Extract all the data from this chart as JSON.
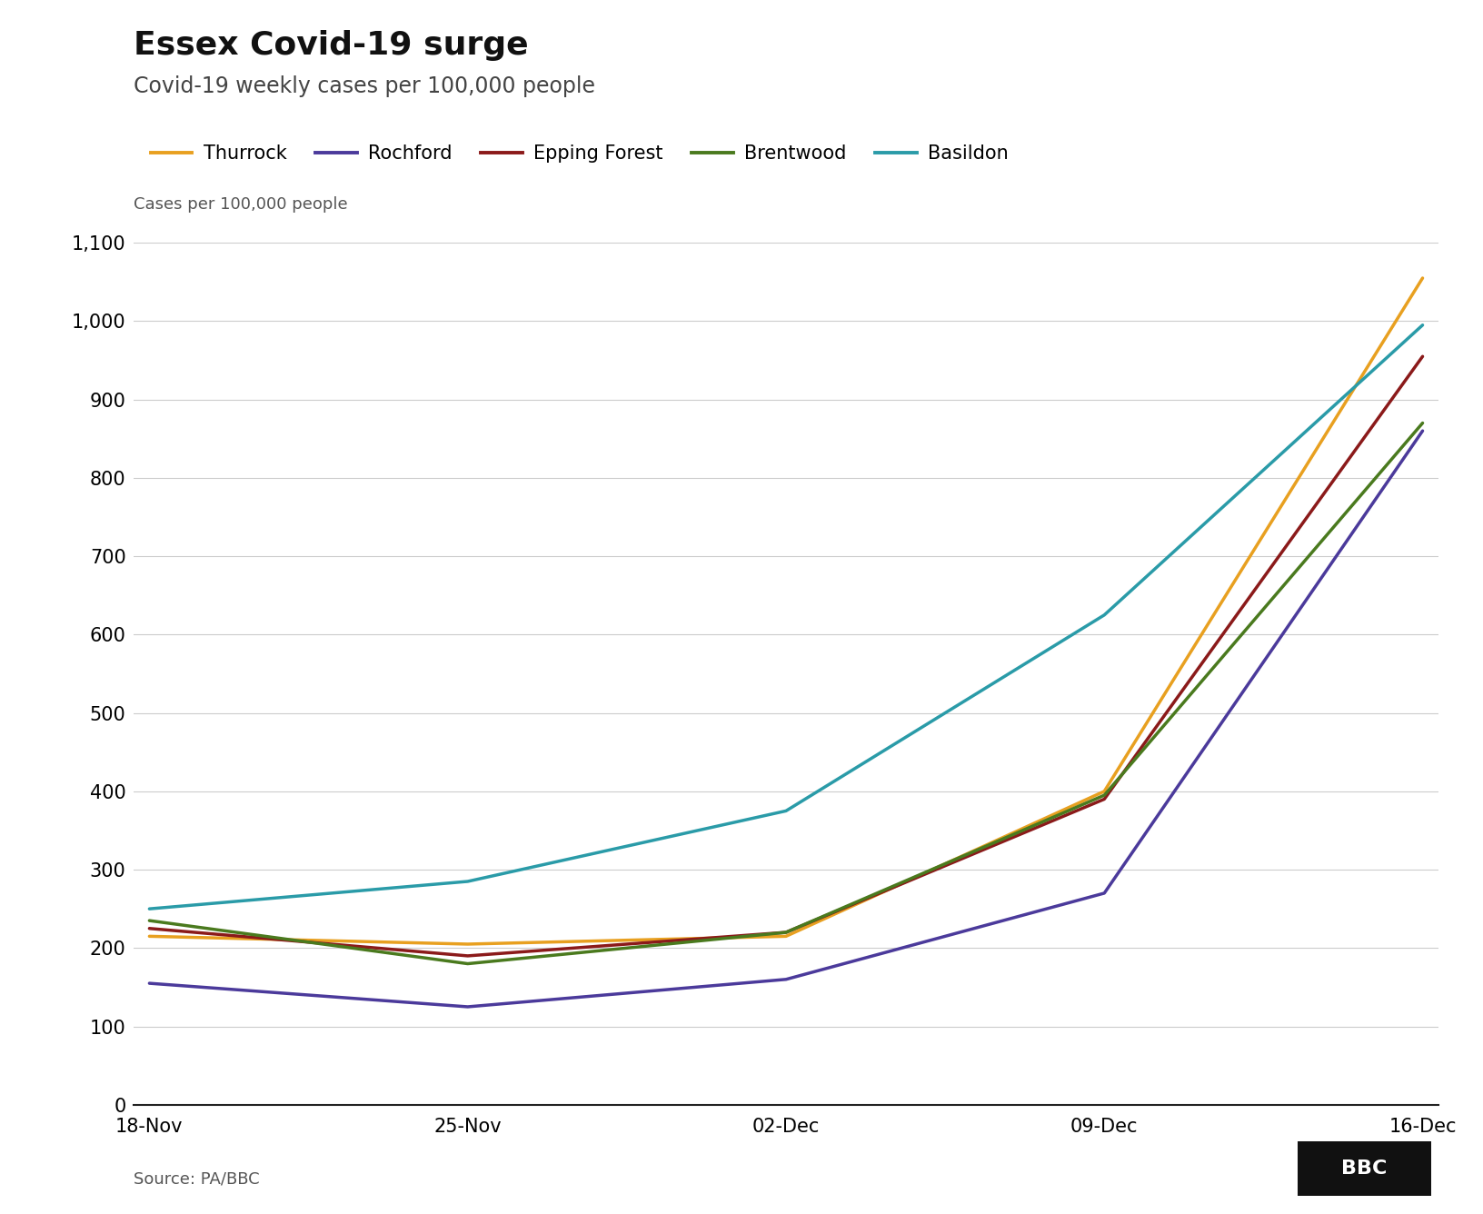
{
  "title": "Essex Covid-19 surge",
  "subtitle": "Covid-19 weekly cases per 100,000 people",
  "ylabel": "Cases per 100,000 people",
  "source": "Source: PA/BBC",
  "x_labels": [
    "18-Nov",
    "25-Nov",
    "02-Dec",
    "09-Dec",
    "16-Dec"
  ],
  "series": [
    {
      "name": "Thurrock",
      "color": "#E8A020",
      "values": [
        215,
        205,
        215,
        400,
        1055
      ]
    },
    {
      "name": "Rochford",
      "color": "#4B3A9B",
      "values": [
        155,
        125,
        160,
        270,
        860
      ]
    },
    {
      "name": "Epping Forest",
      "color": "#8B1A1A",
      "values": [
        225,
        190,
        220,
        390,
        955
      ]
    },
    {
      "name": "Brentwood",
      "color": "#4A7A1E",
      "values": [
        235,
        180,
        220,
        395,
        870
      ]
    },
    {
      "name": "Basildon",
      "color": "#2A9BA8",
      "values": [
        250,
        285,
        375,
        625,
        995
      ]
    }
  ],
  "ylim": [
    0,
    1100
  ],
  "yticks": [
    0,
    100,
    200,
    300,
    400,
    500,
    600,
    700,
    800,
    900,
    1000,
    1100
  ],
  "background_color": "#ffffff",
  "plot_bg_color": "#ffffff",
  "title_fontsize": 26,
  "subtitle_fontsize": 17,
  "legend_fontsize": 15,
  "tick_fontsize": 15,
  "ylabel_fontsize": 13,
  "linewidth": 2.5
}
